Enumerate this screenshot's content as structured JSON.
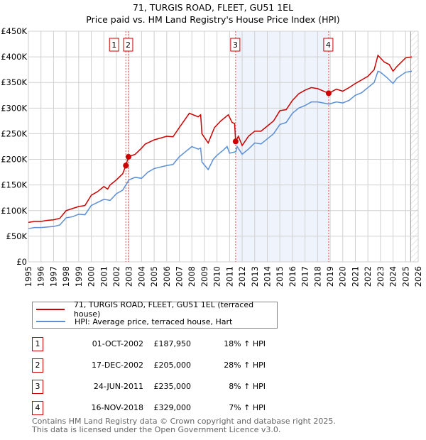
{
  "chart_data": {
    "type": "line",
    "title": "71, TURGIS ROAD, FLEET, GU51 1EL",
    "subtitle": "Price paid vs. HM Land Registry's House Price Index (HPI)",
    "xlim": [
      1995,
      2026
    ],
    "ylim": [
      0,
      450000
    ],
    "x_ticks": [
      "1995",
      "1996",
      "1997",
      "1998",
      "1999",
      "2000",
      "2001",
      "2002",
      "2003",
      "2004",
      "2005",
      "2006",
      "2007",
      "2008",
      "2009",
      "2010",
      "2011",
      "2012",
      "2013",
      "2014",
      "2015",
      "2016",
      "2017",
      "2018",
      "2019",
      "2020",
      "2021",
      "2022",
      "2023",
      "2024",
      "2025",
      "2026"
    ],
    "y_ticks": [
      {
        "v": 0,
        "label": "£0"
      },
      {
        "v": 50000,
        "label": "£50K"
      },
      {
        "v": 100000,
        "label": "£100K"
      },
      {
        "v": 150000,
        "label": "£150K"
      },
      {
        "v": 200000,
        "label": "£200K"
      },
      {
        "v": 250000,
        "label": "£250K"
      },
      {
        "v": 300000,
        "label": "£300K"
      },
      {
        "v": 350000,
        "label": "£350K"
      },
      {
        "v": 400000,
        "label": "£400K"
      },
      {
        "v": 450000,
        "label": "£450K"
      }
    ],
    "grid": true,
    "shaded_range": [
      2011.48,
      2018.88
    ],
    "hatched_from": 2025.4,
    "series": [
      {
        "name": "71, TURGIS ROAD, FLEET, GU51 1EL (terraced house)",
        "color": "#cc0000",
        "x": [
          1995,
          1995.5,
          1996,
          1996.5,
          1997,
          1997.5,
          1998,
          1998.5,
          1999,
          1999.5,
          2000,
          2000.5,
          2001,
          2001.3,
          2001.5,
          2002,
          2002.5,
          2002.75,
          2002.96,
          2003.5,
          2004,
          2004.3,
          2005,
          2006,
          2006.5,
          2007,
          2007.8,
          2008.5,
          2008.7,
          2008.8,
          2009.3,
          2009.8,
          2010.3,
          2010.9,
          2011.2,
          2011.4,
          2011.48,
          2011.7,
          2012,
          2012.5,
          2013,
          2013.5,
          2014,
          2014.5,
          2015,
          2015.5,
          2016,
          2016.5,
          2017,
          2017.5,
          2018,
          2018.88,
          2019.5,
          2020,
          2020.5,
          2021,
          2021.5,
          2022,
          2022.5,
          2022.8,
          2023.3,
          2023.7,
          2024,
          2024.3,
          2025,
          2025.5
        ],
        "y": [
          77000,
          79000,
          79000,
          81000,
          82000,
          85000,
          100000,
          104000,
          108000,
          110000,
          130000,
          137000,
          147000,
          142000,
          150000,
          160000,
          172000,
          187950,
          205000,
          210000,
          222000,
          230000,
          238000,
          245000,
          244000,
          262000,
          290000,
          283000,
          287000,
          250000,
          232000,
          262000,
          275000,
          287000,
          272000,
          270000,
          235000,
          245000,
          227000,
          245000,
          255000,
          255000,
          265000,
          275000,
          295000,
          297000,
          315000,
          328000,
          335000,
          340000,
          338000,
          329000,
          337000,
          333000,
          340000,
          348000,
          355000,
          362000,
          375000,
          403000,
          390000,
          385000,
          372000,
          381000,
          398000,
          400000
        ]
      },
      {
        "name": "HPI: Average price, terraced house, Hart",
        "color": "#5b8fd6",
        "x": [
          1995,
          1995.5,
          1996,
          1996.5,
          1997,
          1997.5,
          1998,
          1998.5,
          1999,
          1999.5,
          2000,
          2000.5,
          2001,
          2001.5,
          2002,
          2002.5,
          2003,
          2003.5,
          2004,
          2004.5,
          2005,
          2006,
          2006.5,
          2007,
          2007.5,
          2008,
          2008.5,
          2008.7,
          2008.8,
          2009.3,
          2009.7,
          2010,
          2010.5,
          2010.8,
          2011,
          2011.5,
          2011.6,
          2012,
          2012.5,
          2013,
          2013.5,
          2014,
          2014.5,
          2015,
          2015.5,
          2016,
          2016.5,
          2017,
          2017.5,
          2018,
          2018.9,
          2019.5,
          2020,
          2020.5,
          2021,
          2021.5,
          2022,
          2022.5,
          2022.8,
          2023,
          2023.5,
          2024,
          2024.3,
          2025,
          2025.5
        ],
        "y": [
          65000,
          67000,
          67000,
          68000,
          69000,
          72000,
          86000,
          88000,
          93000,
          92000,
          110000,
          116000,
          122000,
          120000,
          133000,
          140000,
          160000,
          165000,
          163000,
          175000,
          182000,
          188000,
          190000,
          205000,
          215000,
          225000,
          220000,
          222000,
          195000,
          180000,
          200000,
          208000,
          218000,
          225000,
          212000,
          215000,
          225000,
          210000,
          220000,
          232000,
          230000,
          240000,
          250000,
          268000,
          272000,
          290000,
          300000,
          305000,
          312000,
          312000,
          308000,
          312000,
          310000,
          315000,
          325000,
          330000,
          340000,
          350000,
          372000,
          370000,
          360000,
          348000,
          358000,
          370000,
          372000
        ]
      }
    ],
    "transactions": [
      {
        "n": "1",
        "x": 2002.75,
        "y": 187950
      },
      {
        "n": "2",
        "x": 2002.96,
        "y": 205000
      },
      {
        "n": "3",
        "x": 2011.48,
        "y": 235000
      },
      {
        "n": "4",
        "x": 2018.88,
        "y": 329000
      }
    ]
  },
  "legend": [
    {
      "label": "71, TURGIS ROAD, FLEET, GU51 1EL (terraced house)",
      "color": "#cc0000"
    },
    {
      "label": "HPI: Average price, terraced house, Hart",
      "color": "#5b8fd6"
    }
  ],
  "table": [
    {
      "n": "1",
      "date": "01-OCT-2002",
      "price": "£187,950",
      "hpi": "18% ↑ HPI"
    },
    {
      "n": "2",
      "date": "17-DEC-2002",
      "price": "£205,000",
      "hpi": "28% ↑ HPI"
    },
    {
      "n": "3",
      "date": "24-JUN-2011",
      "price": "£235,000",
      "hpi": "8% ↑ HPI"
    },
    {
      "n": "4",
      "date": "16-NOV-2018",
      "price": "£329,000",
      "hpi": "7% ↑ HPI"
    }
  ],
  "footer": [
    "Contains HM Land Registry data © Crown copyright and database right 2025.",
    "This data is licensed under the Open Government Licence v3.0."
  ]
}
